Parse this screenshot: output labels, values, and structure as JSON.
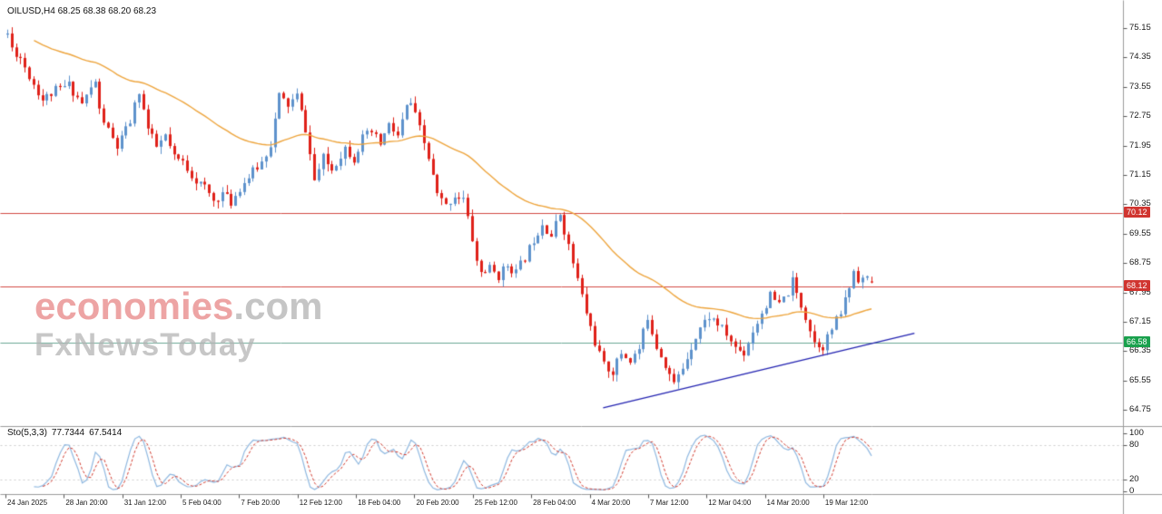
{
  "header": {
    "symbol": "OILUSD",
    "timeframe": "H4",
    "symbol_ohlc_line": "OILUSD,H4 68.25 68.38 68.20 68.23"
  },
  "watermark": {
    "brand": "economies",
    "suffix": ".com",
    "tagline": "FxNewsToday"
  },
  "colors": {
    "background": "#ffffff",
    "separator": "#9b9b9b",
    "axis_text": "#1a1a1a",
    "tick": "#555555"
  },
  "chart_data": {
    "type": "candlestick",
    "symbol": "OILUSD",
    "timeframe": "H4",
    "current_ohlc": {
      "open": 68.25,
      "high": 68.38,
      "low": 68.2,
      "close": 68.23
    },
    "price_axis_ticks": [
      75.15,
      74.35,
      73.55,
      72.75,
      71.95,
      71.15,
      70.35,
      69.55,
      68.75,
      67.95,
      67.15,
      66.35,
      65.55,
      64.75
    ],
    "time_axis_ticks": [
      "24 Jan 2025",
      "28 Jan 20:00",
      "31 Jan 12:00",
      "5 Feb 04:00",
      "7 Feb 20:00",
      "12 Feb 12:00",
      "18 Feb 04:00",
      "20 Feb 20:00",
      "25 Feb 12:00",
      "28 Feb 04:00",
      "4 Mar 20:00",
      "7 Mar 12:00",
      "12 Mar 04:00",
      "14 Mar 20:00",
      "19 Mar 12:00"
    ],
    "candle_count": 198,
    "price_path_anchors": [
      [
        0,
        75.0
      ],
      [
        1,
        74.6
      ],
      [
        3,
        74.35
      ],
      [
        5,
        73.85
      ],
      [
        8,
        73.2
      ],
      [
        11,
        73.45
      ],
      [
        14,
        73.6
      ],
      [
        17,
        73.1
      ],
      [
        20,
        73.7
      ],
      [
        21,
        72.9
      ],
      [
        23,
        72.35
      ],
      [
        25,
        71.9
      ],
      [
        28,
        72.6
      ],
      [
        30,
        73.45
      ],
      [
        32,
        72.4
      ],
      [
        34,
        71.9
      ],
      [
        36,
        72.2
      ],
      [
        38,
        71.6
      ],
      [
        40,
        71.5
      ],
      [
        43,
        71.0
      ],
      [
        45,
        70.8
      ],
      [
        47,
        70.45
      ],
      [
        49,
        70.65
      ],
      [
        51,
        70.4
      ],
      [
        53,
        70.8
      ],
      [
        55,
        71.1
      ],
      [
        58,
        71.5
      ],
      [
        60,
        72.0
      ],
      [
        62,
        73.3
      ],
      [
        64,
        73.05
      ],
      [
        66,
        73.3
      ],
      [
        68,
        72.4
      ],
      [
        70,
        71.0
      ],
      [
        72,
        71.6
      ],
      [
        74,
        71.3
      ],
      [
        77,
        71.9
      ],
      [
        79,
        71.6
      ],
      [
        81,
        72.15
      ],
      [
        83,
        72.3
      ],
      [
        85,
        72.0
      ],
      [
        87,
        72.5
      ],
      [
        89,
        72.2
      ],
      [
        91,
        73.0
      ],
      [
        92,
        73.1
      ],
      [
        94,
        72.4
      ],
      [
        96,
        71.6
      ],
      [
        98,
        70.6
      ],
      [
        100,
        70.3
      ],
      [
        102,
        70.6
      ],
      [
        104,
        70.5
      ],
      [
        106,
        69.4
      ],
      [
        107,
        68.8
      ],
      [
        108,
        68.5
      ],
      [
        110,
        68.6
      ],
      [
        112,
        68.4
      ],
      [
        114,
        68.7
      ],
      [
        116,
        68.5
      ],
      [
        118,
        68.9
      ],
      [
        120,
        69.4
      ],
      [
        122,
        69.85
      ],
      [
        124,
        69.5
      ],
      [
        126,
        70.1
      ],
      [
        128,
        69.2
      ],
      [
        130,
        68.3
      ],
      [
        132,
        67.4
      ],
      [
        134,
        66.6
      ],
      [
        136,
        65.95
      ],
      [
        138,
        65.8
      ],
      [
        140,
        66.3
      ],
      [
        142,
        66.1
      ],
      [
        144,
        66.4
      ],
      [
        146,
        67.3
      ],
      [
        148,
        66.5
      ],
      [
        150,
        66.0
      ],
      [
        152,
        65.45
      ],
      [
        154,
        65.9
      ],
      [
        156,
        66.5
      ],
      [
        158,
        67.0
      ],
      [
        160,
        67.3
      ],
      [
        162,
        67.1
      ],
      [
        164,
        66.8
      ],
      [
        166,
        66.45
      ],
      [
        168,
        66.3
      ],
      [
        170,
        66.9
      ],
      [
        172,
        67.4
      ],
      [
        174,
        67.85
      ],
      [
        176,
        67.6
      ],
      [
        178,
        67.95
      ],
      [
        179,
        68.25
      ],
      [
        180,
        67.9
      ],
      [
        182,
        67.3
      ],
      [
        184,
        66.6
      ],
      [
        186,
        66.5
      ],
      [
        188,
        66.95
      ],
      [
        190,
        67.4
      ],
      [
        192,
        68.1
      ],
      [
        193,
        68.55
      ],
      [
        194,
        68.35
      ],
      [
        196,
        68.3
      ],
      [
        197,
        68.23
      ]
    ],
    "synthesis": {
      "seed": 11,
      "close_noise": 0.26,
      "wick_noise": 0.2
    },
    "candle_bull_color": "#5e92cc",
    "candle_bear_color": "#df2119",
    "moving_average": {
      "type": "EMA",
      "period": 50,
      "color": "#eda43c"
    },
    "horizontal_levels": [
      {
        "price": 70.12,
        "label": "70.12",
        "line_color": "#d24a42",
        "tag_color": "#d03530"
      },
      {
        "price": 68.12,
        "label": "68.12",
        "line_color": "#d24a42",
        "tag_color": "#d03530"
      },
      {
        "price": 66.58,
        "label": "66.58",
        "line_color": "#6aa795",
        "tag_color": "#1aa14d"
      }
    ],
    "trendline": {
      "from": {
        "index": 136,
        "price": 64.82
      },
      "to": {
        "index": 207,
        "price": 66.85
      },
      "color": "#2222b0"
    },
    "indicator": {
      "name": "Sto(5,3,3)",
      "main_value": "77.7344",
      "signal_value": "67.5414",
      "k_period": 5,
      "d_period": 3,
      "slowing": 3,
      "scale_ticks": [
        100,
        80,
        20,
        0
      ],
      "level_lines": [
        80,
        20
      ],
      "main_color": "#8fb8e0",
      "signal_color": "#d03a2e"
    }
  }
}
